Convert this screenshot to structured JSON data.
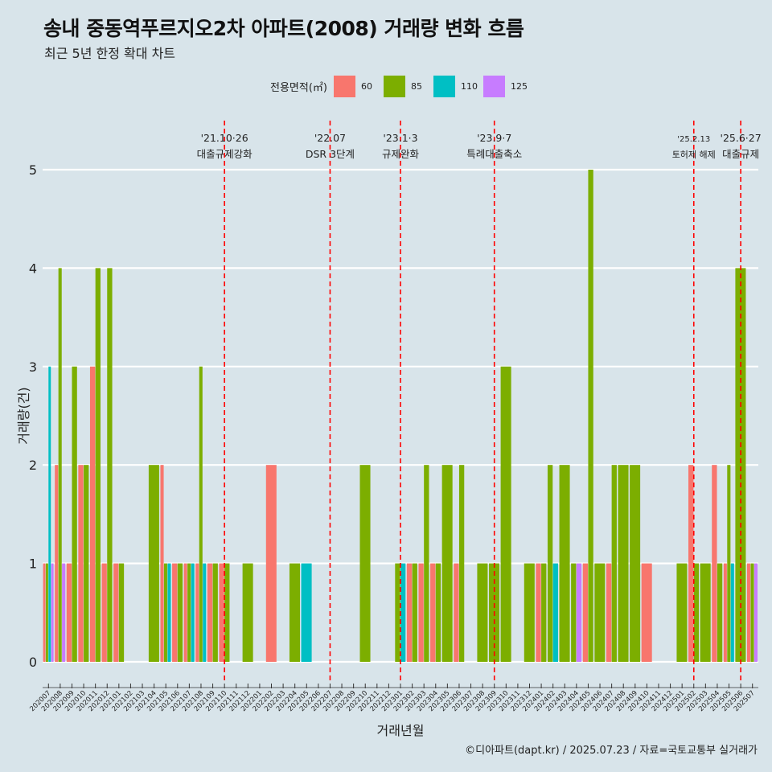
{
  "title": "송내 중동역푸르지오2차 아파트(2008) 거래량 변화 흐름",
  "subtitle": "최근 5년 한정 확대 차트",
  "footer": "©디아파트(dapt.kr) / 2025.07.23 / 자료=국토교통부 실거래가",
  "legend": {
    "title": "전용면적(㎡)",
    "items": [
      {
        "label": "60",
        "color": "#f8766d"
      },
      {
        "label": "85",
        "color": "#7cae00"
      },
      {
        "label": "110",
        "color": "#00bfc4"
      },
      {
        "label": "125",
        "color": "#c77cff"
      }
    ]
  },
  "chart_data": {
    "type": "bar",
    "title": "송내 중동역푸르지오2차 아파트(2008) 거래량 변화 흐름",
    "subtitle": "최근 5년 한정 확대 차트",
    "xlabel": "거래년월",
    "ylabel": "거래량(건)",
    "ylim": [
      0,
      5
    ],
    "yticks": [
      0,
      1,
      2,
      3,
      4,
      5
    ],
    "grid": true,
    "legend_position": "top",
    "categories": [
      "202007",
      "202008",
      "202009",
      "202010",
      "202011",
      "202012",
      "202101",
      "202102",
      "202103",
      "202104",
      "202105",
      "202106",
      "202107",
      "202108",
      "202109",
      "202110",
      "202111",
      "202112",
      "202201",
      "202202",
      "202203",
      "202204",
      "202205",
      "202206",
      "202207",
      "202208",
      "202209",
      "202210",
      "202211",
      "202212",
      "202301",
      "202302",
      "202303",
      "202304",
      "202305",
      "202306",
      "202307",
      "202308",
      "202309",
      "202310",
      "202311",
      "202312",
      "202401",
      "202402",
      "202403",
      "202404",
      "202405",
      "202406",
      "202407",
      "202408",
      "202409",
      "202410",
      "202411",
      "202412",
      "202501",
      "202502",
      "202503",
      "202504",
      "202505",
      "202506",
      "202507"
    ],
    "series": [
      {
        "name": "60",
        "color": "#f8766d",
        "values": [
          1,
          2,
          1,
          2,
          3,
          1,
          1,
          0,
          0,
          0,
          2,
          1,
          1,
          1,
          1,
          1,
          0,
          0,
          0,
          2,
          0,
          0,
          0,
          0,
          0,
          0,
          0,
          0,
          0,
          0,
          0,
          1,
          1,
          1,
          0,
          1,
          0,
          0,
          0,
          0,
          0,
          0,
          1,
          0,
          0,
          0,
          1,
          0,
          1,
          0,
          0,
          1,
          0,
          0,
          0,
          2,
          0,
          2,
          1,
          0,
          1
        ]
      },
      {
        "name": "85",
        "color": "#7cae00",
        "values": [
          1,
          4,
          3,
          2,
          4,
          4,
          1,
          0,
          0,
          2,
          1,
          1,
          1,
          3,
          1,
          1,
          0,
          1,
          0,
          0,
          0,
          1,
          0,
          0,
          0,
          0,
          0,
          2,
          0,
          0,
          1,
          1,
          2,
          1,
          2,
          2,
          0,
          1,
          1,
          3,
          0,
          1,
          1,
          2,
          2,
          1,
          5,
          1,
          2,
          2,
          2,
          0,
          0,
          0,
          1,
          1,
          1,
          1,
          2,
          4,
          1
        ]
      },
      {
        "name": "110",
        "color": "#00bfc4",
        "values": [
          3,
          0,
          0,
          0,
          0,
          0,
          0,
          0,
          0,
          0,
          1,
          0,
          1,
          1,
          0,
          0,
          0,
          0,
          0,
          0,
          0,
          0,
          1,
          0,
          0,
          0,
          0,
          0,
          0,
          0,
          1,
          0,
          0,
          0,
          0,
          0,
          0,
          0,
          0,
          0,
          0,
          0,
          0,
          1,
          0,
          0,
          0,
          0,
          0,
          0,
          0,
          0,
          0,
          0,
          0,
          0,
          0,
          0,
          1,
          0,
          0
        ]
      },
      {
        "name": "125",
        "color": "#c77cff",
        "values": [
          1,
          1,
          0,
          0,
          0,
          0,
          0,
          0,
          0,
          0,
          0,
          0,
          0,
          0,
          0,
          0,
          0,
          0,
          0,
          0,
          0,
          0,
          0,
          0,
          0,
          0,
          0,
          0,
          0,
          0,
          0,
          0,
          0,
          0,
          0,
          0,
          0,
          0,
          0,
          0,
          0,
          0,
          0,
          0,
          0,
          1,
          0,
          0,
          0,
          0,
          0,
          0,
          0,
          0,
          0,
          0,
          0,
          0,
          0,
          0,
          1
        ]
      }
    ],
    "annotations": [
      {
        "date": "'21.10·26",
        "label": "대출규제강화",
        "category": "202110",
        "style": "dashed",
        "color": "#ff0000"
      },
      {
        "date": "'22.07",
        "label": "DSR 3단계",
        "category": "202207",
        "style": "dashed",
        "color": "#ff0000"
      },
      {
        "date": "'23.1·3",
        "label": "규제완화",
        "category": "202301",
        "style": "dashed",
        "color": "#ff0000"
      },
      {
        "date": "'23.9·7",
        "label": "특례대출축소",
        "category": "202309",
        "style": "dashed",
        "color": "#ff0000"
      },
      {
        "date": "'25.2.13",
        "label": "토허제 해제",
        "category": "202502",
        "style": "dashed",
        "color": "#ff0000"
      },
      {
        "date": "'25.6·27",
        "label": "대출규제",
        "category": "202506",
        "style": "dashed",
        "color": "#ff0000"
      }
    ]
  }
}
